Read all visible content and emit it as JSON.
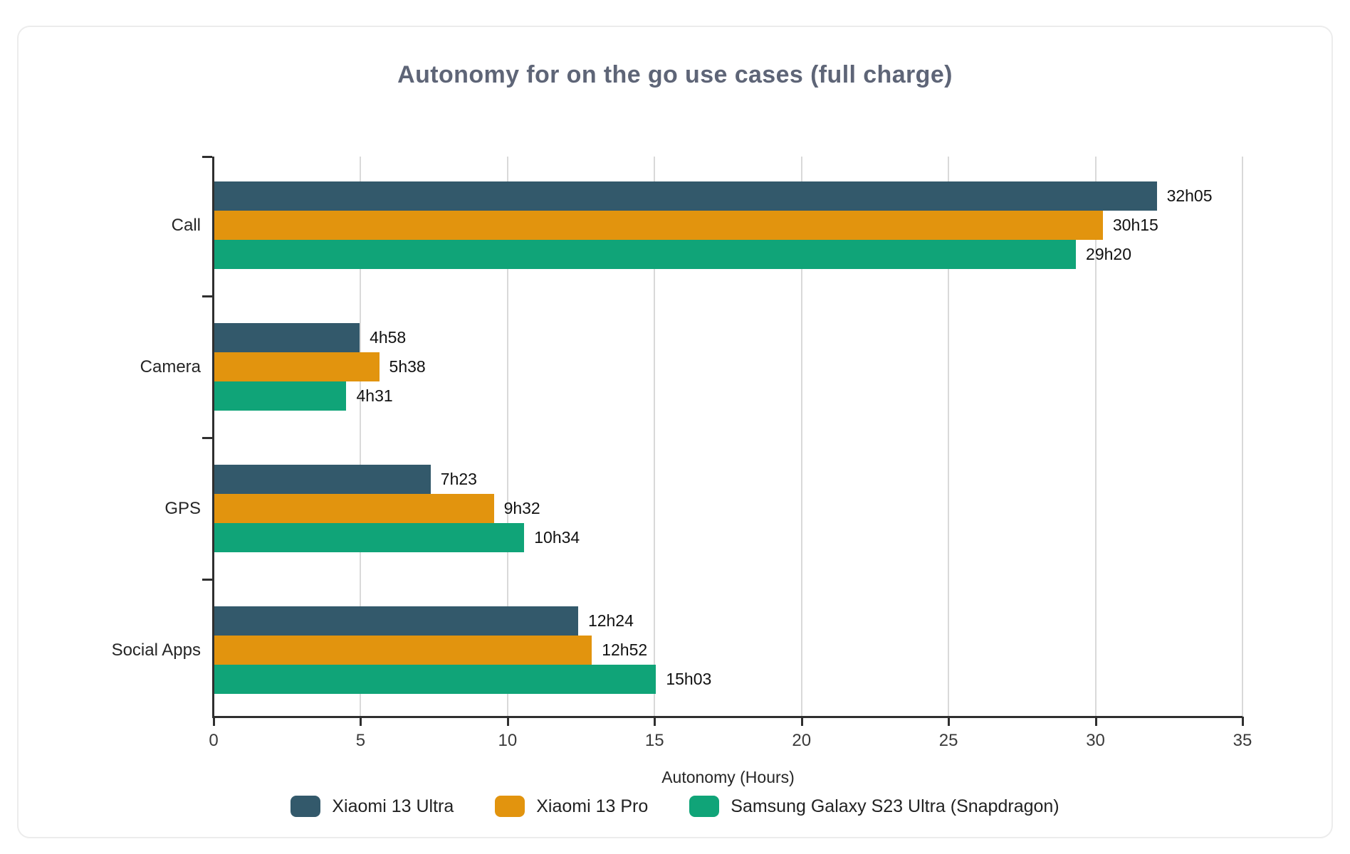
{
  "page": {
    "background": "#ffffff",
    "card_border_color": "#ececec"
  },
  "chart_data": {
    "type": "bar",
    "orientation": "horizontal",
    "title": "Autonomy for on the go use cases (full charge)",
    "title_color": "#5e6577",
    "xlabel": "Autonomy (Hours)",
    "xlim": [
      0,
      35
    ],
    "xticks": [
      0,
      5,
      10,
      15,
      20,
      25,
      30,
      35
    ],
    "grid": true,
    "legend_position": "bottom",
    "categories": [
      "Call",
      "Camera",
      "GPS",
      "Social Apps"
    ],
    "series": [
      {
        "name": "Xiaomi 13 Ultra",
        "color": "#33596b",
        "labels": [
          "32h05",
          "4h58",
          "7h23",
          "12h24"
        ],
        "values_hours": [
          32.083,
          4.967,
          7.383,
          12.4
        ]
      },
      {
        "name": "Xiaomi 13 Pro",
        "color": "#e2940e",
        "labels": [
          "30h15",
          "5h38",
          "9h32",
          "12h52"
        ],
        "values_hours": [
          30.25,
          5.633,
          9.533,
          12.867
        ]
      },
      {
        "name": "Samsung Galaxy S23 Ultra (Snapdragon)",
        "color": "#10a478",
        "labels": [
          "29h20",
          "4h31",
          "10h34",
          "15h03"
        ],
        "values_hours": [
          29.333,
          4.517,
          10.567,
          15.05
        ]
      }
    ],
    "colors": {
      "gridline": "#d9d9d9",
      "axis": "#2f2f2f",
      "tick_label": "#3a3a3a",
      "value_label": "#111111",
      "category_label": "#262626"
    }
  }
}
